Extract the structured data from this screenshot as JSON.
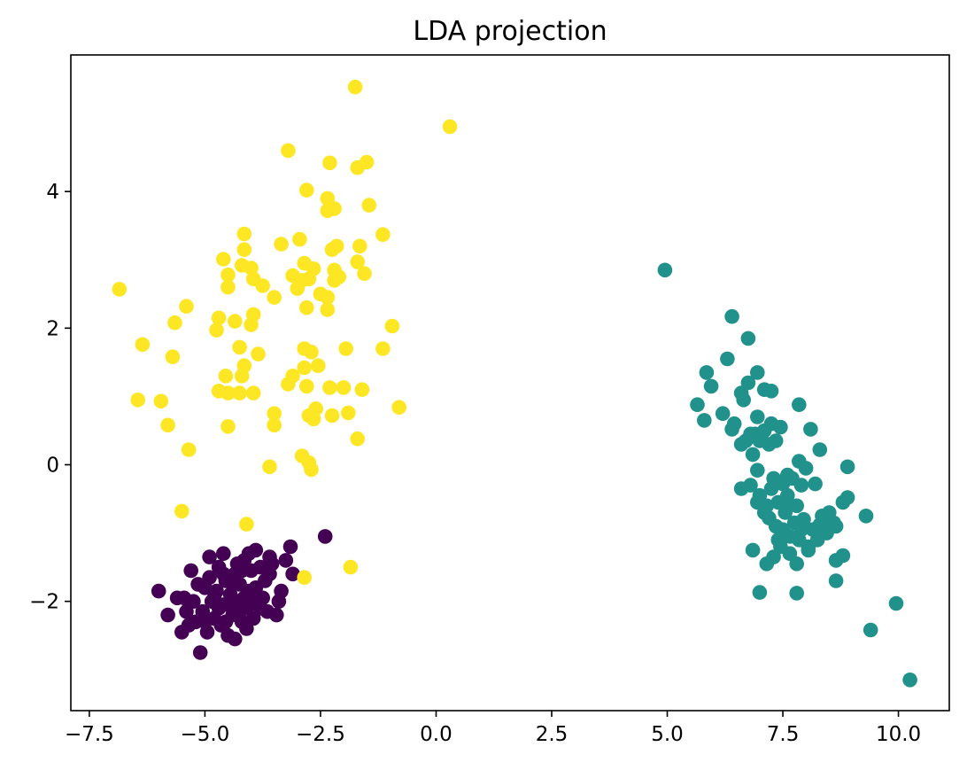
{
  "chart_data": {
    "type": "scatter",
    "title": "LDA projection",
    "xlabel": "",
    "ylabel": "",
    "xlim": [
      -7.9,
      11.1
    ],
    "ylim": [
      -3.6,
      6.0
    ],
    "x_ticks": [
      -7.5,
      -5.0,
      -2.5,
      0.0,
      2.5,
      5.0,
      7.5,
      10.0
    ],
    "x_tick_labels": [
      "−7.5",
      "−5.0",
      "−2.5",
      "0.0",
      "2.5",
      "5.0",
      "7.5",
      "10.0"
    ],
    "y_ticks": [
      -2,
      0,
      2,
      4
    ],
    "y_tick_labels": [
      "−2",
      "0",
      "2",
      "4"
    ],
    "grid": false,
    "colors": [
      "#440154",
      "#21918c",
      "#fde725"
    ],
    "series": [
      {
        "color": "#440154",
        "points": [
          [
            -2.4,
            -1.05
          ],
          [
            -3.15,
            -1.2
          ],
          [
            -3.25,
            -1.4
          ],
          [
            -3.1,
            -1.6
          ],
          [
            -3.35,
            -1.85
          ],
          [
            -3.4,
            -2.0
          ],
          [
            -3.6,
            -1.35
          ],
          [
            -3.8,
            -1.5
          ],
          [
            -3.9,
            -1.25
          ],
          [
            -3.7,
            -1.7
          ],
          [
            -3.75,
            -1.95
          ],
          [
            -3.65,
            -2.15
          ],
          [
            -3.85,
            -2.05
          ],
          [
            -4.0,
            -1.55
          ],
          [
            -4.05,
            -1.85
          ],
          [
            -4.1,
            -2.1
          ],
          [
            -4.15,
            -1.4
          ],
          [
            -4.2,
            -2.3
          ],
          [
            -4.25,
            -1.75
          ],
          [
            -4.3,
            -2.0
          ],
          [
            -4.35,
            -1.6
          ],
          [
            -4.4,
            -2.2
          ],
          [
            -4.45,
            -1.9
          ],
          [
            -4.5,
            -2.5
          ],
          [
            -4.55,
            -1.7
          ],
          [
            -4.6,
            -2.05
          ],
          [
            -4.65,
            -2.35
          ],
          [
            -4.7,
            -1.5
          ],
          [
            -4.75,
            -1.85
          ],
          [
            -4.8,
            -2.25
          ],
          [
            -4.85,
            -2.0
          ],
          [
            -4.9,
            -1.65
          ],
          [
            -4.95,
            -2.45
          ],
          [
            -5.0,
            -1.8
          ],
          [
            -5.05,
            -2.15
          ],
          [
            -5.1,
            -2.75
          ],
          [
            -5.15,
            -1.75
          ],
          [
            -5.2,
            -2.3
          ],
          [
            -5.25,
            -2.0
          ],
          [
            -5.3,
            -1.55
          ],
          [
            -5.35,
            -2.35
          ],
          [
            -5.4,
            -2.15
          ],
          [
            -5.45,
            -1.95
          ],
          [
            -5.5,
            -2.45
          ],
          [
            -5.6,
            -1.95
          ],
          [
            -5.8,
            -2.2
          ],
          [
            -6.0,
            -1.85
          ],
          [
            -4.9,
            -1.35
          ],
          [
            -4.6,
            -1.3
          ],
          [
            -4.2,
            -1.55
          ],
          [
            -3.95,
            -2.25
          ],
          [
            -3.8,
            -2.1
          ],
          [
            -4.1,
            -2.4
          ],
          [
            -4.35,
            -2.55
          ],
          [
            -4.0,
            -1.95
          ],
          [
            -4.4,
            -1.75
          ],
          [
            -4.7,
            -2.1
          ],
          [
            -4.25,
            -2.15
          ],
          [
            -3.9,
            -1.8
          ],
          [
            -4.55,
            -2.3
          ],
          [
            -4.8,
            -1.95
          ],
          [
            -4.15,
            -1.95
          ],
          [
            -4.45,
            -2.05
          ],
          [
            -3.6,
            -1.6
          ],
          [
            -3.45,
            -2.2
          ],
          [
            -5.0,
            -2.3
          ],
          [
            -4.05,
            -1.3
          ],
          [
            -4.3,
            -1.45
          ],
          [
            -3.55,
            -1.45
          ],
          [
            -4.6,
            -1.6
          ]
        ]
      },
      {
        "color": "#21918c",
        "points": [
          [
            4.95,
            2.85
          ],
          [
            6.4,
            2.17
          ],
          [
            6.75,
            1.85
          ],
          [
            6.3,
            1.55
          ],
          [
            5.85,
            1.35
          ],
          [
            5.95,
            1.15
          ],
          [
            5.65,
            0.88
          ],
          [
            5.8,
            0.65
          ],
          [
            6.2,
            0.75
          ],
          [
            6.45,
            0.6
          ],
          [
            6.6,
            1.05
          ],
          [
            6.75,
            1.2
          ],
          [
            6.95,
            1.35
          ],
          [
            7.1,
            1.1
          ],
          [
            7.25,
            1.08
          ],
          [
            7.85,
            0.88
          ],
          [
            6.65,
            0.95
          ],
          [
            6.4,
            0.52
          ],
          [
            6.6,
            0.3
          ],
          [
            6.8,
            0.45
          ],
          [
            6.95,
            0.7
          ],
          [
            7.1,
            0.5
          ],
          [
            7.2,
            0.3
          ],
          [
            7.35,
            0.35
          ],
          [
            7.45,
            0.55
          ],
          [
            7.25,
            0.6
          ],
          [
            6.9,
            0.45
          ],
          [
            6.7,
            0.35
          ],
          [
            7.0,
            0.35
          ],
          [
            8.1,
            0.52
          ],
          [
            8.3,
            0.22
          ],
          [
            7.85,
            0.05
          ],
          [
            8.9,
            -0.03
          ],
          [
            6.95,
            -0.08
          ],
          [
            7.3,
            -0.2
          ],
          [
            7.5,
            -0.28
          ],
          [
            7.7,
            -0.2
          ],
          [
            7.9,
            -0.3
          ],
          [
            8.2,
            -0.28
          ],
          [
            6.6,
            -0.35
          ],
          [
            6.8,
            -0.3
          ],
          [
            7.0,
            -0.45
          ],
          [
            7.15,
            -0.6
          ],
          [
            7.4,
            -0.55
          ],
          [
            7.6,
            -0.45
          ],
          [
            7.8,
            -0.6
          ],
          [
            6.95,
            -0.55
          ],
          [
            7.2,
            -0.78
          ],
          [
            7.35,
            -0.9
          ],
          [
            7.55,
            -0.7
          ],
          [
            7.75,
            -0.85
          ],
          [
            7.95,
            -0.8
          ],
          [
            8.15,
            -0.95
          ],
          [
            8.35,
            -0.75
          ],
          [
            8.5,
            -0.7
          ],
          [
            8.6,
            -0.85
          ],
          [
            8.8,
            -0.55
          ],
          [
            8.9,
            -0.48
          ],
          [
            9.3,
            -0.75
          ],
          [
            8.45,
            -1.0
          ],
          [
            8.65,
            -0.9
          ],
          [
            8.25,
            -1.1
          ],
          [
            8.05,
            -1.2
          ],
          [
            7.85,
            -1.1
          ],
          [
            7.65,
            -1.3
          ],
          [
            7.45,
            -1.2
          ],
          [
            7.3,
            -1.35
          ],
          [
            7.15,
            -1.45
          ],
          [
            6.85,
            -1.25
          ],
          [
            7.8,
            -1.45
          ],
          [
            8.05,
            -1.25
          ],
          [
            8.65,
            -1.4
          ],
          [
            8.8,
            -1.33
          ],
          [
            8.65,
            -1.7
          ],
          [
            7.0,
            -1.87
          ],
          [
            7.8,
            -1.88
          ],
          [
            9.95,
            -2.03
          ],
          [
            9.4,
            -2.42
          ],
          [
            10.25,
            -3.15
          ],
          [
            7.5,
            -0.95
          ],
          [
            7.1,
            -0.7
          ],
          [
            7.65,
            -1.05
          ],
          [
            7.9,
            -0.95
          ],
          [
            8.3,
            -0.88
          ],
          [
            7.4,
            -1.1
          ],
          [
            7.55,
            -0.6
          ],
          [
            7.25,
            -0.35
          ],
          [
            7.6,
            -0.15
          ],
          [
            8.0,
            -0.05
          ],
          [
            6.85,
            0.15
          ]
        ]
      },
      {
        "color": "#fde725",
        "points": [
          [
            -1.75,
            5.53
          ],
          [
            0.3,
            4.95
          ],
          [
            -3.2,
            4.6
          ],
          [
            -2.3,
            4.42
          ],
          [
            -1.5,
            4.43
          ],
          [
            -1.7,
            4.35
          ],
          [
            -2.8,
            4.02
          ],
          [
            -2.35,
            3.9
          ],
          [
            -2.2,
            3.75
          ],
          [
            -2.35,
            3.72
          ],
          [
            -1.45,
            3.8
          ],
          [
            -1.15,
            3.37
          ],
          [
            -4.15,
            3.38
          ],
          [
            -2.95,
            3.3
          ],
          [
            -3.35,
            3.23
          ],
          [
            -2.15,
            3.2
          ],
          [
            -2.25,
            3.15
          ],
          [
            -1.65,
            3.2
          ],
          [
            -4.15,
            3.15
          ],
          [
            -4.6,
            3.01
          ],
          [
            -4.2,
            2.92
          ],
          [
            -4.0,
            2.88
          ],
          [
            -2.85,
            2.95
          ],
          [
            -2.65,
            2.87
          ],
          [
            -2.2,
            2.85
          ],
          [
            -1.7,
            2.97
          ],
          [
            -1.55,
            2.8
          ],
          [
            -4.5,
            2.78
          ],
          [
            -3.95,
            2.72
          ],
          [
            -3.75,
            2.62
          ],
          [
            -3.1,
            2.77
          ],
          [
            -2.9,
            2.7
          ],
          [
            -2.75,
            2.72
          ],
          [
            -2.2,
            2.7
          ],
          [
            -2.1,
            2.75
          ],
          [
            -3.0,
            2.58
          ],
          [
            -4.5,
            2.6
          ],
          [
            -2.5,
            2.5
          ],
          [
            -2.35,
            2.45
          ],
          [
            -3.5,
            2.45
          ],
          [
            -6.85,
            2.57
          ],
          [
            -5.4,
            2.32
          ],
          [
            -2.8,
            2.3
          ],
          [
            -2.35,
            2.27
          ],
          [
            -4.7,
            2.15
          ],
          [
            -3.95,
            2.2
          ],
          [
            -5.65,
            2.08
          ],
          [
            -4.35,
            2.1
          ],
          [
            -4.0,
            2.05
          ],
          [
            -4.75,
            1.97
          ],
          [
            -0.95,
            2.03
          ],
          [
            -6.35,
            1.76
          ],
          [
            -4.25,
            1.72
          ],
          [
            -2.85,
            1.7
          ],
          [
            -2.7,
            1.65
          ],
          [
            -1.95,
            1.7
          ],
          [
            -1.15,
            1.7
          ],
          [
            -5.7,
            1.58
          ],
          [
            -3.85,
            1.62
          ],
          [
            -4.15,
            1.45
          ],
          [
            -2.55,
            1.45
          ],
          [
            -2.85,
            1.42
          ],
          [
            -4.55,
            1.3
          ],
          [
            -4.2,
            1.3
          ],
          [
            -3.1,
            1.3
          ],
          [
            -3.2,
            1.18
          ],
          [
            -2.8,
            1.15
          ],
          [
            -2.3,
            1.13
          ],
          [
            -2.0,
            1.13
          ],
          [
            -1.6,
            1.1
          ],
          [
            -4.7,
            1.08
          ],
          [
            -4.5,
            1.05
          ],
          [
            -4.25,
            1.05
          ],
          [
            -3.95,
            1.05
          ],
          [
            -6.45,
            0.95
          ],
          [
            -5.95,
            0.93
          ],
          [
            -3.5,
            0.75
          ],
          [
            -2.6,
            0.82
          ],
          [
            -2.75,
            0.72
          ],
          [
            -2.25,
            0.72
          ],
          [
            -2.65,
            0.67
          ],
          [
            -1.9,
            0.76
          ],
          [
            -0.8,
            0.84
          ],
          [
            -5.8,
            0.58
          ],
          [
            -4.5,
            0.56
          ],
          [
            -3.5,
            0.58
          ],
          [
            -1.7,
            0.38
          ],
          [
            -5.35,
            0.22
          ],
          [
            -2.9,
            0.13
          ],
          [
            -2.75,
            0.03
          ],
          [
            -3.6,
            -0.03
          ],
          [
            -2.7,
            -0.07
          ],
          [
            -5.5,
            -0.68
          ],
          [
            -4.1,
            -0.87
          ],
          [
            -1.85,
            -1.5
          ],
          [
            -2.85,
            -1.65
          ]
        ]
      }
    ]
  }
}
